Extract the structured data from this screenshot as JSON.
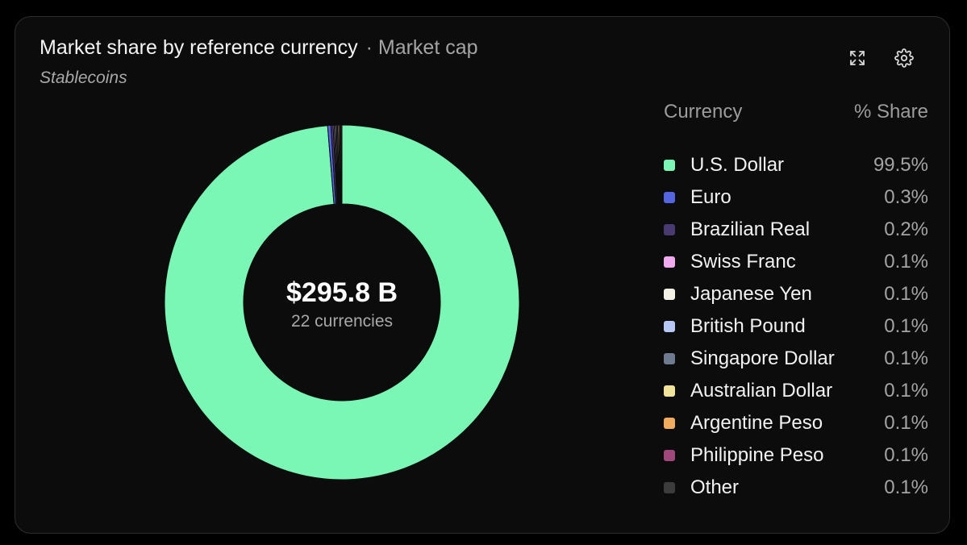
{
  "header": {
    "title": "Market share by reference currency",
    "metric": "· Market cap",
    "subtitle": "Stablecoins"
  },
  "toolbar": {
    "expand_icon": "expand-icon",
    "settings_icon": "gear-icon"
  },
  "summary": {
    "total": "$295.8 B",
    "count": "22 currencies"
  },
  "legend": {
    "col_currency": "Currency",
    "col_share": "% Share"
  },
  "chart_data": {
    "type": "pie",
    "donut": true,
    "categories": [
      "U.S. Dollar",
      "Euro",
      "Brazilian Real",
      "Swiss Franc",
      "Japanese Yen",
      "British Pound",
      "Singapore Dollar",
      "Australian Dollar",
      "Argentine Peso",
      "Philippine Peso",
      "Other"
    ],
    "values": [
      99.5,
      0.3,
      0.2,
      0.1,
      0.1,
      0.1,
      0.1,
      0.1,
      0.1,
      0.1,
      0.1
    ],
    "labels": [
      "99.5%",
      "0.3%",
      "0.2%",
      "0.1%",
      "0.1%",
      "0.1%",
      "0.1%",
      "0.1%",
      "0.1%",
      "0.1%",
      "0.1%"
    ],
    "colors": [
      "#7af7b4",
      "#5564e0",
      "#4a3a72",
      "#f1a9ef",
      "#f4f2e6",
      "#b8c8f6",
      "#6e7a90",
      "#f1e39a",
      "#f0ab5e",
      "#a0487c",
      "#3c3c3c"
    ],
    "legend_position": "right"
  },
  "colors": {
    "background": "#000000",
    "card": "#0c0c0c",
    "border": "#2c2c2c"
  }
}
